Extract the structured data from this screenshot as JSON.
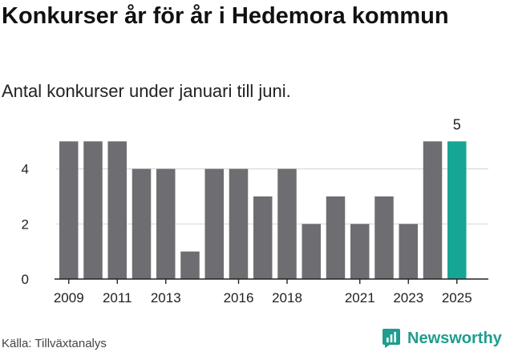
{
  "title": "Konkurser år för år i Hedemora kommun",
  "subtitle": "Antal konkurser under januari till juni.",
  "source": "Källa: Tillväxtanalys",
  "brand": {
    "name": "Newsworthy",
    "icon": "newsworthy-logo-icon",
    "color": "#1f9d8e"
  },
  "chart_data": {
    "type": "bar",
    "categories": [
      "2009",
      "2010",
      "2011",
      "2012",
      "2013",
      "2014",
      "2015",
      "2016",
      "2017",
      "2018",
      "2019",
      "2020",
      "2021",
      "2022",
      "2023",
      "2024",
      "2025"
    ],
    "values": [
      5,
      5,
      5,
      4,
      4,
      1,
      4,
      4,
      3,
      4,
      2,
      3,
      2,
      3,
      2,
      5,
      5
    ],
    "x_tick_labels": [
      "2009",
      "2011",
      "2013",
      "2016",
      "2018",
      "2021",
      "2023",
      "2025"
    ],
    "y_ticks": [
      0,
      2,
      4
    ],
    "ylim": [
      0,
      5.3
    ],
    "grid": true,
    "data_labels": [
      {
        "category": "2025",
        "value": "5"
      }
    ],
    "colors": {
      "bar": "#6e6d72",
      "highlight": "#17a595",
      "grid": "#d9d9d9",
      "axis": "#222222"
    },
    "highlight_category": "2025"
  }
}
